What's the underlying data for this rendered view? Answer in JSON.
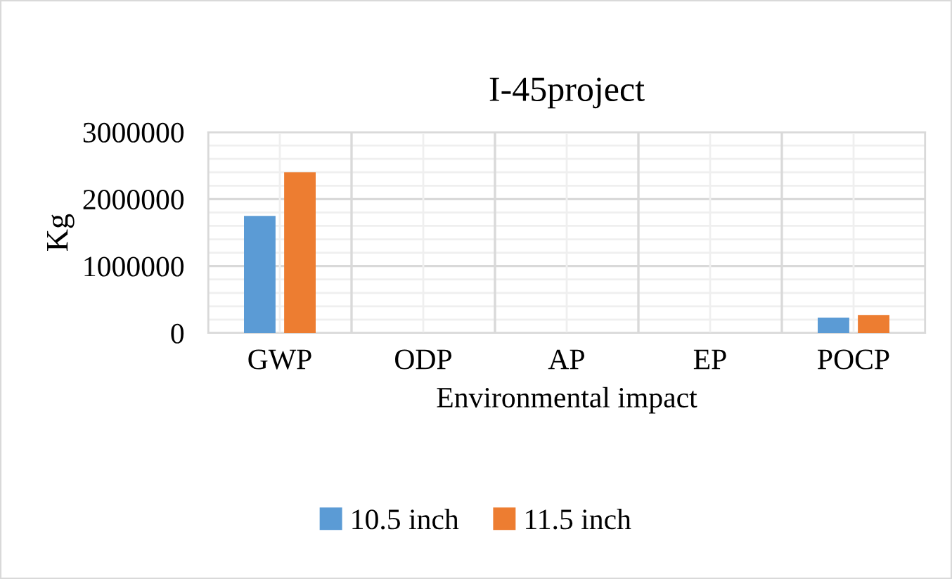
{
  "chart_data": {
    "type": "bar",
    "title": "I-45project",
    "xlabel": "Environmental impact",
    "ylabel": "Kg",
    "categories": [
      "GWP",
      "ODP",
      "AP",
      "EP",
      "POCP"
    ],
    "series": [
      {
        "name": "10.5 inch",
        "color": "#5b9bd5",
        "values": [
          1750000,
          0,
          0,
          0,
          230000
        ]
      },
      {
        "name": "11.5 inch",
        "color": "#ed7d31",
        "values": [
          2400000,
          0,
          0,
          0,
          270000
        ]
      }
    ],
    "ylim": [
      0,
      3000000
    ],
    "yticks": [
      0,
      {
        "value": 200000,
        "label": null
      },
      {
        "value": 400000,
        "label": null
      },
      {
        "value": 600000,
        "label": null
      },
      {
        "value": 800000,
        "label": null
      },
      1000000,
      {
        "value": 1200000,
        "label": null
      },
      {
        "value": 1400000,
        "label": null
      },
      {
        "value": 1600000,
        "label": null
      },
      {
        "value": 1800000,
        "label": null
      },
      2000000,
      {
        "value": 2200000,
        "label": null
      },
      {
        "value": 2400000,
        "label": null
      },
      {
        "value": 2600000,
        "label": null
      },
      {
        "value": 2800000,
        "label": null
      },
      3000000
    ],
    "grid": true,
    "legend": "bottom"
  }
}
